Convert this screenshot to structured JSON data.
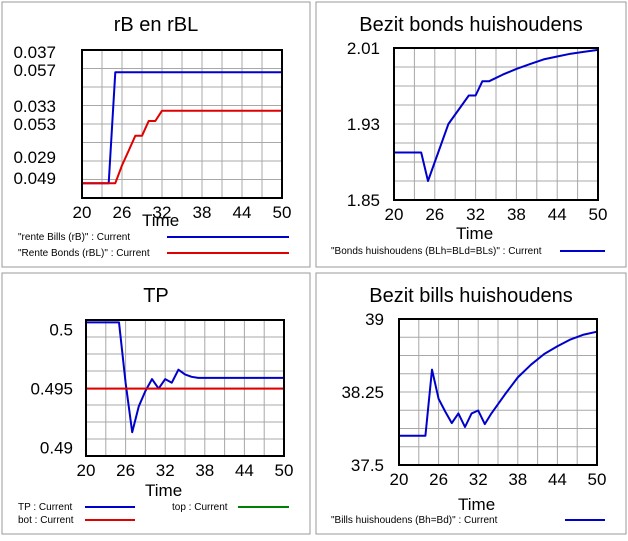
{
  "chart_data": [
    {
      "type": "line",
      "title": "rB en rBL",
      "xlabel": "Time",
      "x_ticks": [
        "20",
        "26",
        "32",
        "38",
        "44",
        "50"
      ],
      "xlim": [
        20,
        50
      ],
      "y_tick_rows": [
        [
          "0.037",
          "0.057"
        ],
        [
          "0.033",
          "0.053"
        ],
        [
          "0.029",
          "0.049"
        ]
      ],
      "grid": true,
      "series": [
        {
          "name": "\"rente Bills (rB)\" : Current",
          "color": "#0000cc",
          "axis": "rB",
          "ylim": [
            0.028,
            0.038
          ],
          "x": [
            20,
            24,
            25,
            26,
            50
          ],
          "y": [
            0.029,
            0.029,
            0.0365,
            0.0365,
            0.0365
          ]
        },
        {
          "name": "\"Rente Bonds (rBL)\" : Current",
          "color": "#e00000",
          "axis": "rBL",
          "ylim": [
            0.048,
            0.058
          ],
          "x": [
            20,
            25,
            26,
            27,
            28,
            29,
            30,
            31,
            32,
            33,
            50
          ],
          "y": [
            0.049,
            0.049,
            0.0502,
            0.0512,
            0.0522,
            0.0522,
            0.0532,
            0.0532,
            0.0539,
            0.0539,
            0.0539
          ]
        }
      ]
    },
    {
      "type": "line",
      "title": "Bezit bonds huishoudens",
      "xlabel": "Time",
      "x_ticks": [
        "20",
        "26",
        "32",
        "38",
        "44",
        "50"
      ],
      "xlim": [
        20,
        50
      ],
      "ylim": [
        1.85,
        2.01
      ],
      "y_ticks": [
        "2.01",
        "1.93",
        "1.85"
      ],
      "y_tick_values": [
        2.01,
        1.93,
        1.85
      ],
      "grid": true,
      "series": [
        {
          "name": "\"Bonds huishoudens (BLh=BLd=BLs)\" : Current",
          "color": "#0000cc",
          "x": [
            20,
            24,
            25,
            26,
            27,
            28,
            29,
            30,
            31,
            32,
            33,
            34,
            36,
            38,
            40,
            42,
            44,
            46,
            48,
            50
          ],
          "y": [
            1.9,
            1.9,
            1.87,
            1.89,
            1.91,
            1.93,
            1.94,
            1.95,
            1.96,
            1.96,
            1.975,
            1.975,
            1.982,
            1.988,
            1.993,
            1.998,
            2.001,
            2.004,
            2.006,
            2.008
          ]
        }
      ]
    },
    {
      "type": "line",
      "title": "TP",
      "xlabel": "Time",
      "x_ticks": [
        "20",
        "26",
        "32",
        "38",
        "44",
        "50"
      ],
      "xlim": [
        20,
        50
      ],
      "ylim": [
        0.4893,
        0.5008
      ],
      "y_ticks": [
        "0.5",
        "0.495",
        "0.49"
      ],
      "y_tick_values": [
        0.5,
        0.495,
        0.49
      ],
      "grid": true,
      "series": [
        {
          "name": "TP : Current",
          "color": "#0000cc",
          "x": [
            20,
            25,
            26,
            27,
            28,
            29,
            30,
            31,
            32,
            33,
            34,
            35,
            36,
            37,
            38,
            50
          ],
          "y": [
            0.5006,
            0.5006,
            0.4955,
            0.4913,
            0.4935,
            0.4948,
            0.4958,
            0.495,
            0.4958,
            0.4955,
            0.4966,
            0.4962,
            0.496,
            0.4959,
            0.4959,
            0.4959
          ]
        },
        {
          "name": "bot : Current",
          "color": "#e00000",
          "x": [
            20,
            50
          ],
          "y": [
            0.495,
            0.495
          ]
        },
        {
          "name": "top : Current",
          "color": "#008000",
          "x": [],
          "y": []
        }
      ]
    },
    {
      "type": "line",
      "title": "Bezit bills huishoudens",
      "xlabel": "Time",
      "x_ticks": [
        "20",
        "26",
        "32",
        "38",
        "44",
        "50"
      ],
      "xlim": [
        20,
        50
      ],
      "ylim": [
        37.5,
        39
      ],
      "y_ticks": [
        "39",
        "38.25",
        "37.5"
      ],
      "y_tick_values": [
        39,
        38.25,
        37.5
      ],
      "grid": true,
      "series": [
        {
          "name": "\"Bills huishoudens (Bh=Bd)\" : Current",
          "color": "#0000cc",
          "x": [
            20,
            24,
            25,
            26,
            27,
            28,
            29,
            30,
            31,
            32,
            33,
            34,
            36,
            38,
            40,
            42,
            44,
            46,
            48,
            50
          ],
          "y": [
            37.8,
            37.8,
            38.48,
            38.18,
            38.05,
            37.93,
            38.03,
            37.89,
            38.03,
            38.06,
            37.92,
            38.03,
            38.22,
            38.4,
            38.53,
            38.64,
            38.72,
            38.79,
            38.84,
            38.87
          ]
        }
      ]
    }
  ]
}
